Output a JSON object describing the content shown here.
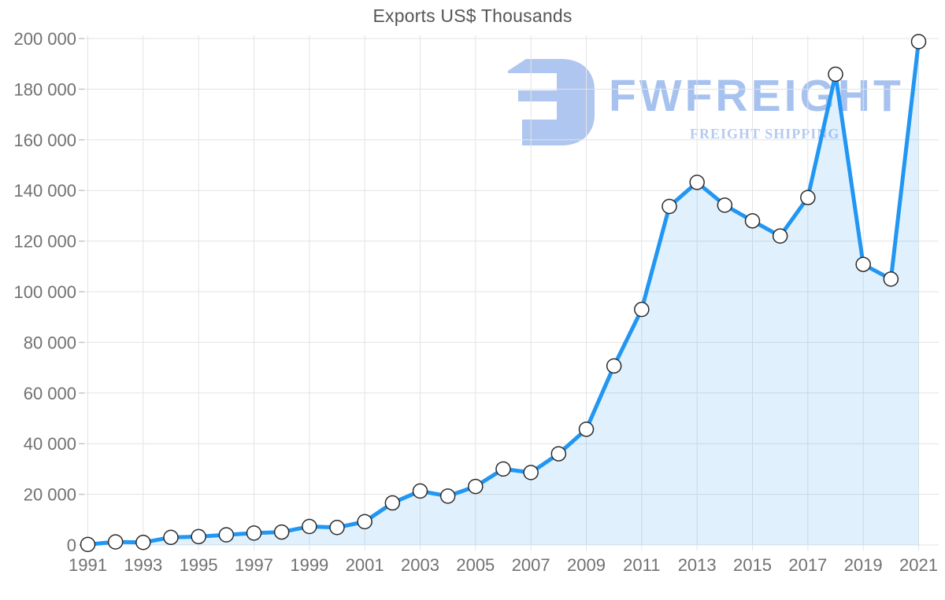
{
  "watermark": {
    "brand": "FWFREIGHT",
    "tagline": "FREIGHT SHIPPING",
    "brand_color": "#a3bfef",
    "tagline_color": "#b1c8f2",
    "icon_color": "#abc4f0"
  },
  "chart_data": {
    "type": "area",
    "title": "Exports US$ Thousands",
    "xlabel": "",
    "ylabel": "",
    "x": [
      1991,
      1992,
      1993,
      1994,
      1995,
      1996,
      1997,
      1998,
      1999,
      2000,
      2001,
      2002,
      2003,
      2004,
      2005,
      2006,
      2007,
      2008,
      2009,
      2010,
      2011,
      2012,
      2013,
      2014,
      2015,
      2016,
      2017,
      2018,
      2019,
      2020,
      2021
    ],
    "series": [
      {
        "name": "Exports US$ Thousands",
        "values": [
          200,
          1200,
          1000,
          3000,
          3300,
          4000,
          4700,
          5100,
          7300,
          6900,
          9200,
          16600,
          21300,
          19300,
          23100,
          30000,
          28600,
          36000,
          45700,
          70700,
          93000,
          133700,
          143200,
          134200,
          128000,
          122000,
          137200,
          185900,
          110800,
          105000,
          198800
        ]
      }
    ],
    "ylim": [
      0,
      200000
    ],
    "ytick_step": 20000,
    "ytick_labels": [
      "0",
      "20 000",
      "40 000",
      "60 000",
      "80 000",
      "100 000",
      "120 000",
      "140 000",
      "160 000",
      "180 000",
      "200 000"
    ],
    "xtick_labels": [
      "1991",
      "1993",
      "1995",
      "1997",
      "1999",
      "2001",
      "2003",
      "2005",
      "2007",
      "2009",
      "2011",
      "2013",
      "2015",
      "2017",
      "2019",
      "2021"
    ],
    "grid": true,
    "legend": "none",
    "colors": {
      "line": "#2196f3",
      "fill": "rgba(33,150,243,0.14)",
      "marker_fill": "#ffffff",
      "marker_stroke": "#2b2b2b",
      "grid": "#e3e3e3",
      "tick": "#c6c6c6",
      "axis_text": "#717171",
      "title_text": "#565656"
    }
  }
}
